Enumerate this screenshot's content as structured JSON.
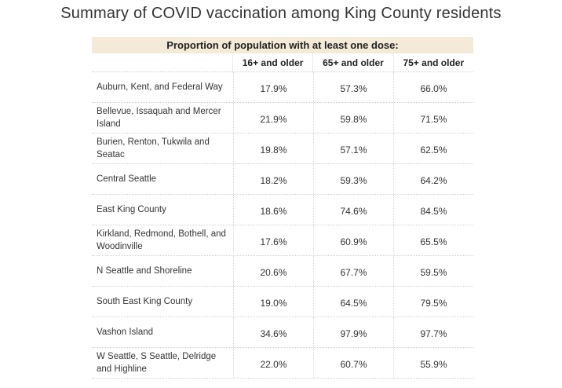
{
  "title": "Summary of COVID vaccination among King County residents",
  "chart_data": {
    "type": "table",
    "title": "Proportion of population with at least one dose:",
    "columns": [
      "16+ and older",
      "65+ and older",
      "75+ and older"
    ],
    "rows": [
      {
        "label": "Auburn, Kent, and Federal Way",
        "values": [
          "17.9%",
          "57.3%",
          "66.0%"
        ]
      },
      {
        "label": "Bellevue, Issaquah and Mercer Island",
        "values": [
          "21.9%",
          "59.8%",
          "71.5%"
        ]
      },
      {
        "label": "Burien, Renton, Tukwila and Seatac",
        "values": [
          "19.8%",
          "57.1%",
          "62.5%"
        ]
      },
      {
        "label": "Central Seattle",
        "values": [
          "18.2%",
          "59.3%",
          "64.2%"
        ]
      },
      {
        "label": "East King County",
        "values": [
          "18.6%",
          "74.6%",
          "84.5%"
        ]
      },
      {
        "label": "Kirkland, Redmond, Bothell, and Woodinville",
        "values": [
          "17.6%",
          "60.9%",
          "65.5%"
        ]
      },
      {
        "label": "N Seattle and Shoreline",
        "values": [
          "20.6%",
          "67.7%",
          "59.5%"
        ]
      },
      {
        "label": "South East King County",
        "values": [
          "19.0%",
          "64.5%",
          "79.5%"
        ]
      },
      {
        "label": "Vashon Island",
        "values": [
          "34.6%",
          "97.9%",
          "97.7%"
        ]
      },
      {
        "label": "W Seattle, S Seattle, Delridge and Highline",
        "values": [
          "22.0%",
          "60.7%",
          "55.9%"
        ]
      }
    ],
    "header_color": "#f4ead8"
  }
}
